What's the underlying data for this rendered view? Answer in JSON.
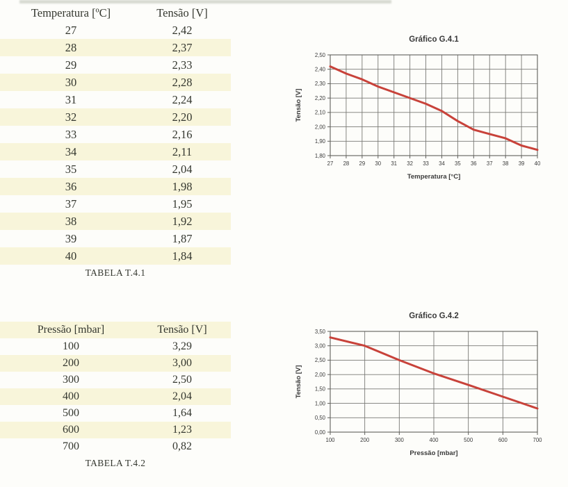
{
  "page": {
    "background": "#fdfdfa",
    "stripe_color": "#f8f5da",
    "text_color": "#34372f"
  },
  "tables": [
    {
      "columns": [
        "Temperatura [ºC]",
        "Tensão [V]"
      ],
      "rows": [
        [
          "27",
          "2,42"
        ],
        [
          "28",
          "2,37"
        ],
        [
          "29",
          "2,33"
        ],
        [
          "30",
          "2,28"
        ],
        [
          "31",
          "2,24"
        ],
        [
          "32",
          "2,20"
        ],
        [
          "33",
          "2,16"
        ],
        [
          "34",
          "2,11"
        ],
        [
          "35",
          "2,04"
        ],
        [
          "36",
          "1,98"
        ],
        [
          "37",
          "1,95"
        ],
        [
          "38",
          "1,92"
        ],
        [
          "39",
          "1,87"
        ],
        [
          "40",
          "1,84"
        ]
      ],
      "caption": "TABELA T.4.1",
      "header_striped": false
    },
    {
      "columns": [
        "Pressão [mbar]",
        "Tensão [V]"
      ],
      "rows": [
        [
          "100",
          "3,29"
        ],
        [
          "200",
          "3,00"
        ],
        [
          "300",
          "2,50"
        ],
        [
          "400",
          "2,04"
        ],
        [
          "500",
          "1,64"
        ],
        [
          "600",
          "1,23"
        ],
        [
          "700",
          "0,82"
        ]
      ],
      "caption": "TABELA T.4.2",
      "header_striped": true
    }
  ],
  "chart_data": [
    {
      "type": "line",
      "title": "Gráfico G.4.1",
      "xlabel": "Temperatura [°C]",
      "ylabel": "Tensão [V]",
      "x": [
        27,
        28,
        29,
        30,
        31,
        32,
        33,
        34,
        35,
        36,
        37,
        38,
        39,
        40
      ],
      "values": [
        2.42,
        2.37,
        2.33,
        2.28,
        2.24,
        2.2,
        2.16,
        2.11,
        2.04,
        1.98,
        1.95,
        1.92,
        1.87,
        1.84
      ],
      "xlim": [
        27,
        40
      ],
      "ylim": [
        1.8,
        2.5
      ],
      "x_tick_labels": [
        "27",
        "28",
        "29",
        "30",
        "31",
        "32",
        "33",
        "34",
        "35",
        "36",
        "37",
        "38",
        "39",
        "40"
      ],
      "y_ticks": [
        1.8,
        1.9,
        2.0,
        2.1,
        2.2,
        2.3,
        2.4,
        2.5
      ],
      "y_tick_labels": [
        "1,80",
        "1,90",
        "2,00",
        "2,10",
        "2,20",
        "2,30",
        "2,40",
        "2,50"
      ],
      "grid": true,
      "legend": "none",
      "line_color": "#c8423a",
      "grid_color": "#787874"
    },
    {
      "type": "line",
      "title": "Gráfico G.4.2",
      "xlabel": "Pressão [mbar]",
      "ylabel": "Tensão [V]",
      "x": [
        100,
        200,
        300,
        400,
        500,
        600,
        700
      ],
      "values": [
        3.29,
        3.0,
        2.5,
        2.04,
        1.64,
        1.23,
        0.82
      ],
      "xlim": [
        100,
        700
      ],
      "ylim": [
        0.0,
        3.5
      ],
      "x_tick_labels": [
        "100",
        "200",
        "300",
        "400",
        "500",
        "600",
        "700"
      ],
      "y_ticks": [
        0.0,
        0.5,
        1.0,
        1.5,
        2.0,
        2.5,
        3.0,
        3.5
      ],
      "y_tick_labels": [
        "0,00",
        "0,50",
        "1,00",
        "1,50",
        "2,00",
        "2,50",
        "3,00",
        "3,50"
      ],
      "grid": true,
      "legend": "none",
      "line_color": "#c8423a",
      "grid_color": "#787874"
    }
  ]
}
